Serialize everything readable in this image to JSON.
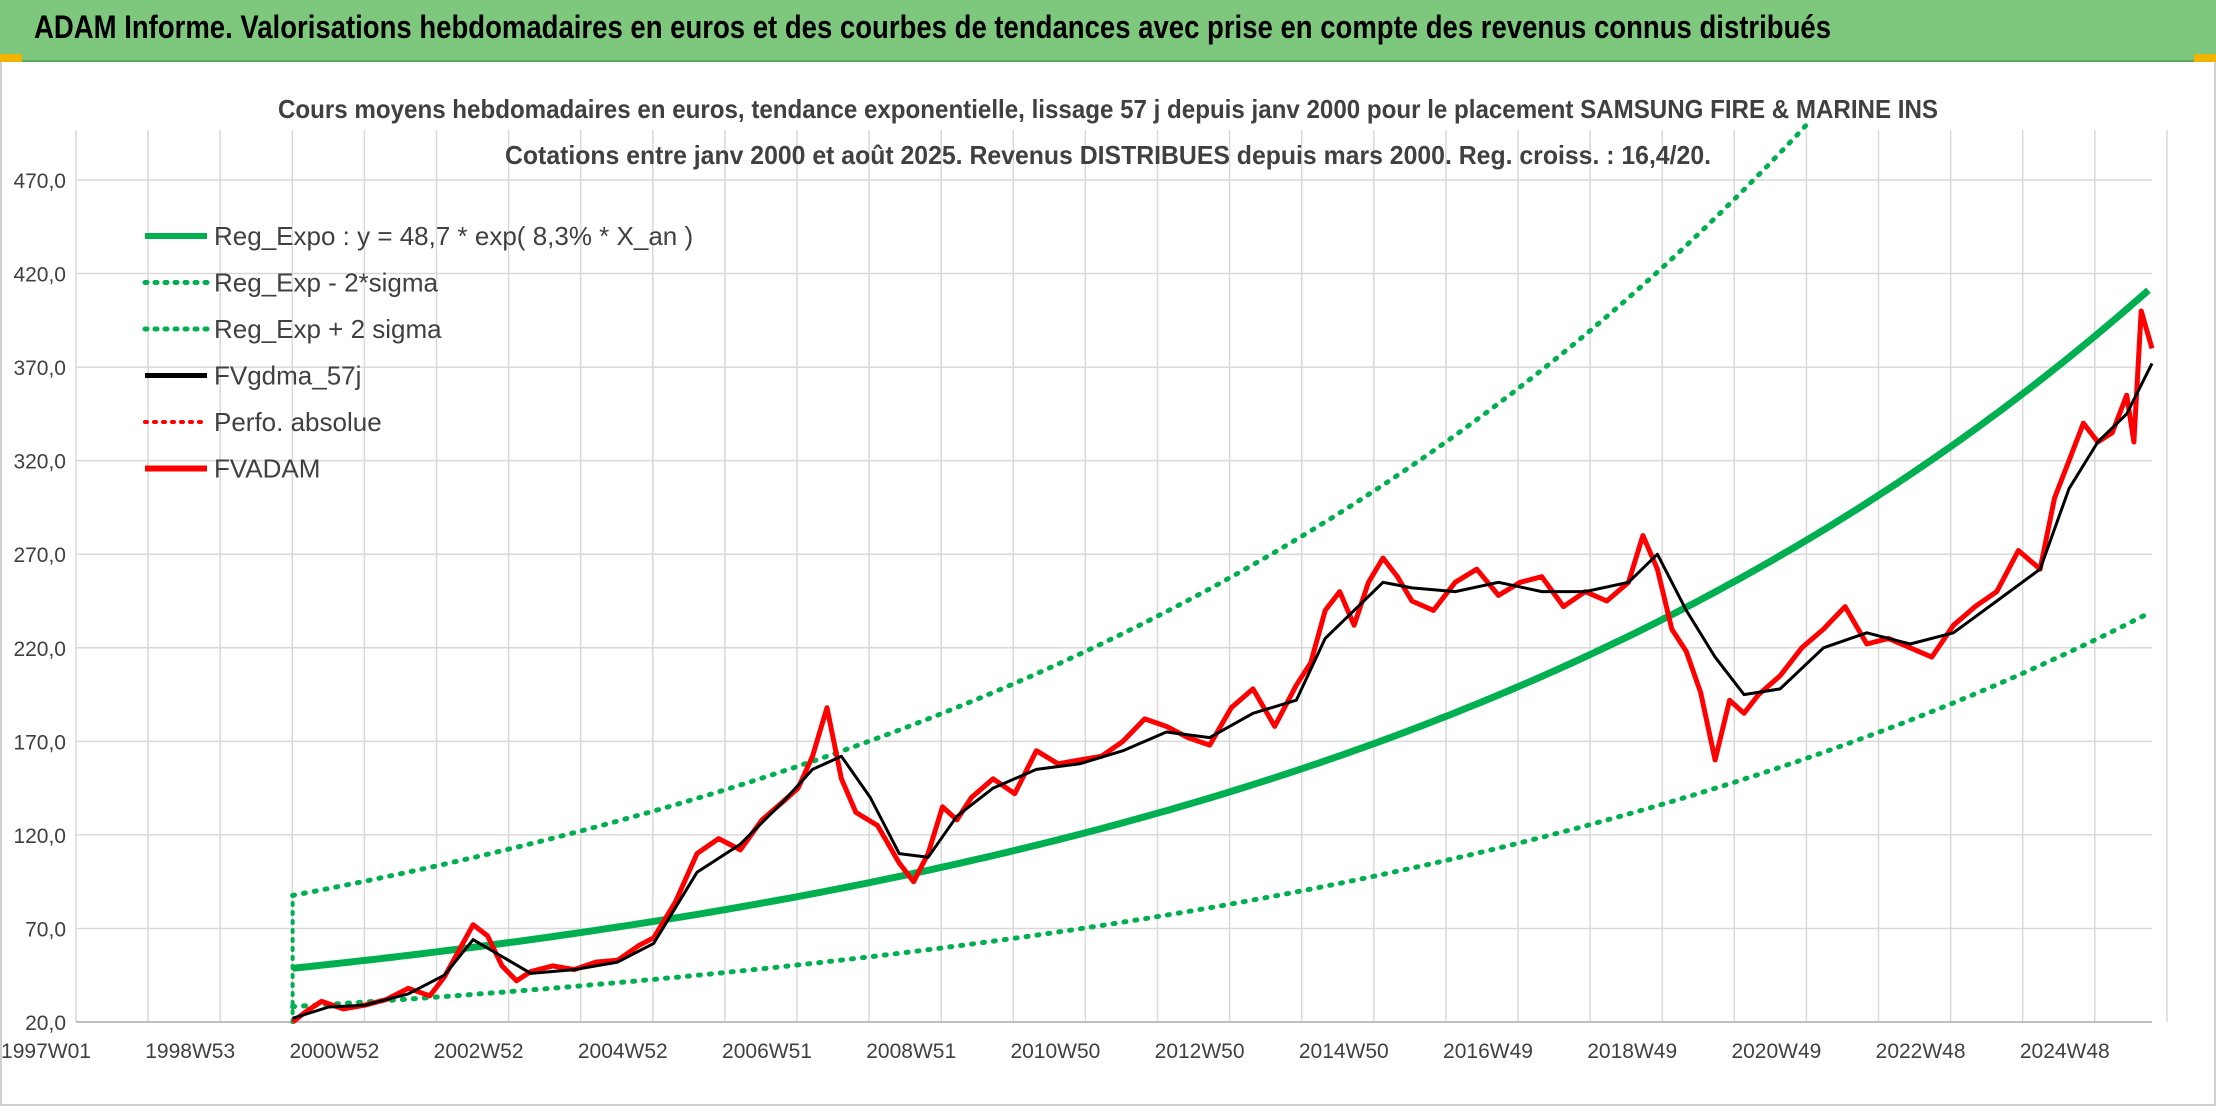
{
  "banner": {
    "title": "ADAM Informe. Valorisations hebdomadaires en euros et des courbes de tendances avec prise en compte des revenus connus distribués"
  },
  "colors": {
    "banner_bg": "#7dc87d",
    "reg_expo": "#00b050",
    "fvgdma": "#000000",
    "fvadam": "#ff0000",
    "grid": "#d9d9d9"
  },
  "chart_data": {
    "type": "line",
    "title": "Cours moyens hebdomadaires en euros, tendance exponentielle, lissage 57 j depuis janv 2000 pour le placement SAMSUNG FIRE & MARINE INS",
    "subtitle": "Cotations entre janv 2000 et août 2025. Revenus DISTRIBUES depuis mars 2000. Reg. croiss. : 16,4/20.",
    "xlabel": "",
    "ylabel": "",
    "ylim": [
      20,
      470
    ],
    "xlim": [
      1997.0,
      2025.75
    ],
    "y_ticks": [
      "20,0",
      "70,0",
      "120,0",
      "170,0",
      "220,0",
      "270,0",
      "320,0",
      "370,0",
      "420,0",
      "470,0"
    ],
    "x_ticks": [
      "1997W01",
      "1998W53",
      "2000W52",
      "2002W52",
      "2004W52",
      "2006W51",
      "2008W51",
      "2010W50",
      "2012W50",
      "2014W50",
      "2016W49",
      "2018W49",
      "2020W49",
      "2022W48",
      "2024W48"
    ],
    "grid": true,
    "legend_position": "top-left",
    "legend": [
      {
        "label": "Reg_Expo : y = 48,7 * exp( 8,3% *  X_an )",
        "style": "solid-green"
      },
      {
        "label": "Reg_Exp - 2*sigma",
        "style": "dotted-green"
      },
      {
        "label": "Reg_Exp + 2 sigma",
        "style": "dotted-green"
      },
      {
        "label": "FVgdma_57j",
        "style": "solid-black"
      },
      {
        "label": "Perfo. absolue",
        "style": "dotted-red"
      },
      {
        "label": "FVADAM",
        "style": "solid-red"
      }
    ],
    "regression": {
      "a": 48.7,
      "rate": 0.083,
      "start_year": 2000.0,
      "end_year": 2025.75,
      "lower_factor": 0.58,
      "upper_factor": 1.8
    },
    "series": [
      {
        "name": "FVADAM",
        "x": [
          2000.0,
          2000.2,
          2000.4,
          2000.7,
          2001.0,
          2001.3,
          2001.6,
          2001.9,
          2002.1,
          2002.3,
          2002.5,
          2002.7,
          2002.9,
          2003.1,
          2003.3,
          2003.6,
          2003.9,
          2004.2,
          2004.5,
          2004.8,
          2005.0,
          2005.3,
          2005.6,
          2005.9,
          2006.2,
          2006.5,
          2006.8,
          2007.0,
          2007.2,
          2007.4,
          2007.6,
          2007.8,
          2008.1,
          2008.4,
          2008.6,
          2008.8,
          2009.0,
          2009.2,
          2009.4,
          2009.7,
          2010.0,
          2010.3,
          2010.6,
          2010.9,
          2011.2,
          2011.5,
          2011.8,
          2012.1,
          2012.4,
          2012.7,
          2013.0,
          2013.3,
          2013.6,
          2013.9,
          2014.1,
          2014.3,
          2014.5,
          2014.7,
          2014.9,
          2015.1,
          2015.3,
          2015.5,
          2015.8,
          2016.1,
          2016.4,
          2016.7,
          2017.0,
          2017.3,
          2017.6,
          2017.9,
          2018.2,
          2018.5,
          2018.7,
          2018.9,
          2019.1,
          2019.3,
          2019.5,
          2019.7,
          2019.9,
          2020.1,
          2020.3,
          2020.6,
          2020.9,
          2021.2,
          2021.5,
          2021.8,
          2022.1,
          2022.4,
          2022.7,
          2023.0,
          2023.3,
          2023.6,
          2023.9,
          2024.2,
          2024.4,
          2024.6,
          2024.8,
          2025.0,
          2025.2,
          2025.4,
          2025.5,
          2025.6,
          2025.75
        ],
        "y": [
          20,
          26,
          31,
          27,
          29,
          32,
          38,
          34,
          44,
          58,
          72,
          66,
          50,
          42,
          47,
          50,
          48,
          52,
          53,
          61,
          65,
          84,
          110,
          118,
          112,
          128,
          138,
          145,
          162,
          188,
          150,
          132,
          125,
          105,
          95,
          110,
          135,
          128,
          140,
          150,
          142,
          165,
          158,
          160,
          162,
          170,
          182,
          178,
          172,
          168,
          188,
          198,
          178,
          200,
          212,
          240,
          250,
          232,
          255,
          268,
          258,
          245,
          240,
          255,
          262,
          248,
          255,
          258,
          242,
          250,
          245,
          255,
          280,
          262,
          230,
          218,
          196,
          160,
          192,
          185,
          195,
          205,
          220,
          230,
          242,
          222,
          225,
          220,
          215,
          232,
          242,
          250,
          272,
          262,
          300,
          320,
          340,
          330,
          335,
          355,
          330,
          400,
          380
        ]
      },
      {
        "name": "FVgdma_57j",
        "x": [
          2000.0,
          2000.5,
          2001.0,
          2001.6,
          2002.1,
          2002.5,
          2002.9,
          2003.3,
          2003.9,
          2004.5,
          2005.0,
          2005.6,
          2006.2,
          2006.8,
          2007.2,
          2007.6,
          2008.0,
          2008.4,
          2008.8,
          2009.2,
          2009.7,
          2010.3,
          2010.9,
          2011.5,
          2012.1,
          2012.7,
          2013.3,
          2013.9,
          2014.3,
          2014.7,
          2015.1,
          2015.5,
          2016.1,
          2016.7,
          2017.3,
          2017.9,
          2018.5,
          2018.9,
          2019.3,
          2019.7,
          2020.1,
          2020.6,
          2021.2,
          2021.8,
          2022.4,
          2023.0,
          2023.6,
          2024.2,
          2024.6,
          2025.0,
          2025.4,
          2025.75
        ],
        "y": [
          22,
          28,
          29,
          35,
          45,
          64,
          55,
          46,
          48,
          52,
          62,
          100,
          115,
          138,
          155,
          162,
          140,
          110,
          108,
          130,
          145,
          155,
          158,
          165,
          175,
          172,
          185,
          192,
          225,
          240,
          255,
          252,
          250,
          255,
          250,
          250,
          255,
          270,
          240,
          215,
          195,
          198,
          220,
          228,
          222,
          228,
          245,
          262,
          305,
          330,
          345,
          372
        ]
      }
    ]
  }
}
